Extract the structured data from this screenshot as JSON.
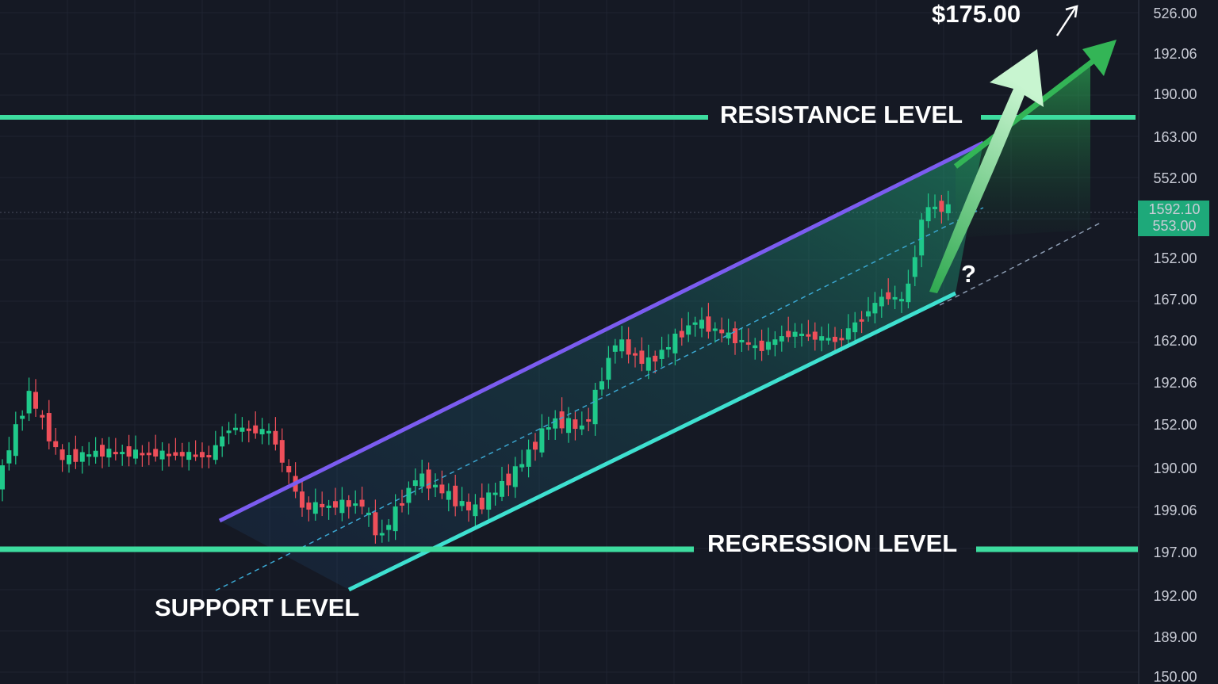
{
  "annotations": {
    "target_price": "$175.00",
    "resistance": "RESISTANCE LEVEL",
    "regression": "REGRESSION LEVEL",
    "support": "SUPPORT LEVEL",
    "question": "?"
  },
  "price_axis": [
    "526.00",
    "192.06",
    "190.00",
    "163.00",
    "552.00",
    "152.00",
    "167.00",
    "162.00",
    "192.06",
    "152.00",
    "190.00",
    "199.06",
    "197.00",
    "192.00",
    "189.00",
    "150.00"
  ],
  "price_tag": [
    "1592.10",
    "553.00"
  ]
}
